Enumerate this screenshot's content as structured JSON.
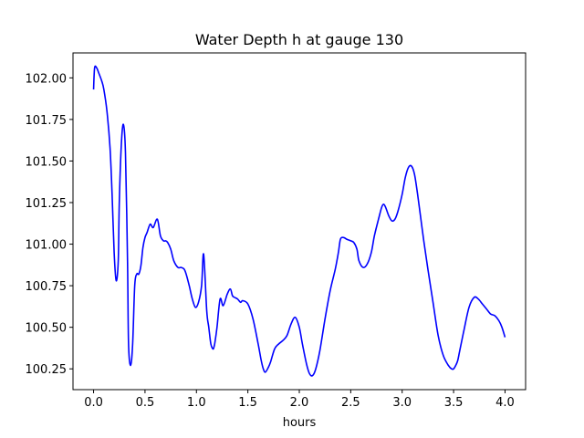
{
  "chart_data": {
    "type": "line",
    "title": "Water Depth h at gauge 130",
    "xlabel": "hours",
    "ylabel": "",
    "xlim": [
      -0.2,
      4.2
    ],
    "ylim": [
      100.125,
      102.15
    ],
    "xticks": [
      0.0,
      0.5,
      1.0,
      1.5,
      2.0,
      2.5,
      3.0,
      3.5,
      4.0
    ],
    "xtick_labels": [
      "0.0",
      "0.5",
      "1.0",
      "1.5",
      "2.0",
      "2.5",
      "3.0",
      "3.5",
      "4.0"
    ],
    "yticks": [
      100.25,
      100.5,
      100.75,
      101.0,
      101.25,
      101.5,
      101.75,
      102.0
    ],
    "ytick_labels": [
      "100.25",
      "100.50",
      "100.75",
      "101.00",
      "101.25",
      "101.50",
      "101.75",
      "102.00"
    ],
    "grid": false,
    "legend": "none",
    "series": [
      {
        "color": "#0000ff",
        "x": [
          0.0,
          0.01,
          0.03,
          0.05,
          0.08,
          0.1,
          0.13,
          0.16,
          0.18,
          0.2,
          0.22,
          0.24,
          0.25,
          0.27,
          0.29,
          0.31,
          0.33,
          0.34,
          0.36,
          0.38,
          0.4,
          0.42,
          0.44,
          0.46,
          0.48,
          0.5,
          0.52,
          0.55,
          0.58,
          0.62,
          0.65,
          0.68,
          0.7,
          0.72,
          0.75,
          0.78,
          0.82,
          0.85,
          0.88,
          0.9,
          0.93,
          0.96,
          0.99,
          1.02,
          1.05,
          1.07,
          1.1,
          1.12,
          1.14,
          1.16,
          1.17,
          1.18,
          1.2,
          1.23,
          1.26,
          1.3,
          1.33,
          1.35,
          1.37,
          1.4,
          1.43,
          1.45,
          1.5,
          1.55,
          1.6,
          1.63,
          1.65,
          1.67,
          1.7,
          1.72,
          1.76,
          1.8,
          1.84,
          1.88,
          1.92,
          1.96,
          2.0,
          2.03,
          2.07,
          2.1,
          2.13,
          2.16,
          2.2,
          2.25,
          2.3,
          2.35,
          2.38,
          2.4,
          2.43,
          2.46,
          2.5,
          2.53,
          2.56,
          2.58,
          2.62,
          2.66,
          2.7,
          2.73,
          2.77,
          2.8,
          2.82,
          2.84,
          2.87,
          2.9,
          2.93,
          2.96,
          3.0,
          3.03,
          3.06,
          3.09,
          3.12,
          3.15,
          3.18,
          3.21,
          3.25,
          3.3,
          3.35,
          3.4,
          3.45,
          3.48,
          3.5,
          3.52,
          3.54,
          3.56,
          3.6,
          3.65,
          3.7,
          3.74,
          3.78,
          3.82,
          3.86,
          3.9,
          3.94,
          3.97,
          4.0
        ],
        "values": [
          101.93,
          102.06,
          102.06,
          102.03,
          101.98,
          101.93,
          101.8,
          101.58,
          101.3,
          100.95,
          100.78,
          100.9,
          101.25,
          101.6,
          101.72,
          101.55,
          100.9,
          100.4,
          100.27,
          100.4,
          100.75,
          100.82,
          100.82,
          100.87,
          100.98,
          101.04,
          101.07,
          101.12,
          101.1,
          101.15,
          101.05,
          101.02,
          101.02,
          101.01,
          100.97,
          100.9,
          100.86,
          100.86,
          100.85,
          100.82,
          100.75,
          100.67,
          100.62,
          100.65,
          100.75,
          100.94,
          100.6,
          100.5,
          100.4,
          100.37,
          100.38,
          100.41,
          100.5,
          100.67,
          100.63,
          100.7,
          100.73,
          100.69,
          100.68,
          100.67,
          100.65,
          100.66,
          100.64,
          100.55,
          100.4,
          100.3,
          100.25,
          100.23,
          100.26,
          100.29,
          100.37,
          100.4,
          100.42,
          100.45,
          100.52,
          100.56,
          100.5,
          100.4,
          100.28,
          100.22,
          100.21,
          100.25,
          100.36,
          100.55,
          100.72,
          100.85,
          100.95,
          101.03,
          101.04,
          101.03,
          101.02,
          101.01,
          100.97,
          100.9,
          100.86,
          100.88,
          100.95,
          101.05,
          101.15,
          101.22,
          101.24,
          101.22,
          101.17,
          101.14,
          101.15,
          101.2,
          101.3,
          101.4,
          101.46,
          101.47,
          101.42,
          101.3,
          101.16,
          101.02,
          100.85,
          100.65,
          100.45,
          100.33,
          100.27,
          100.25,
          100.25,
          100.27,
          100.3,
          100.36,
          100.48,
          100.62,
          100.68,
          100.67,
          100.64,
          100.61,
          100.58,
          100.57,
          100.54,
          100.5,
          100.44
        ]
      }
    ]
  }
}
